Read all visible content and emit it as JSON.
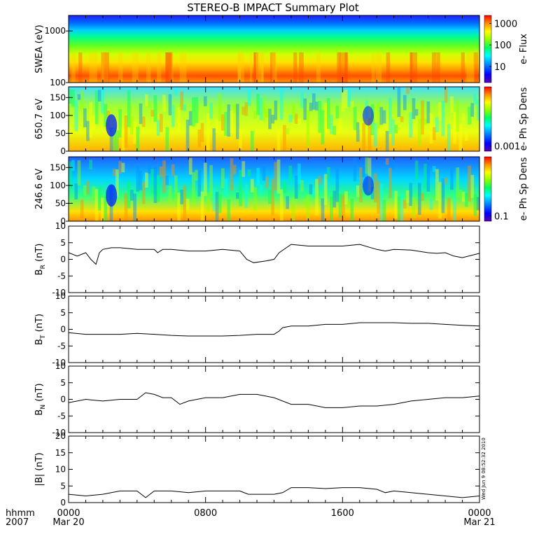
{
  "title": "STEREO-B IMPACT Summary Plot",
  "time_axis": {
    "left_labels": [
      "hhmm",
      "2007"
    ],
    "ticks": [
      {
        "hours": 0,
        "top": "0000",
        "bottom": "Mar 20"
      },
      {
        "hours": 8,
        "top": "0800",
        "bottom": ""
      },
      {
        "hours": 16,
        "top": "1600",
        "bottom": ""
      },
      {
        "hours": 24,
        "top": "0000",
        "bottom": "Mar 21"
      }
    ]
  },
  "timestamp": "Wed Jun  9 08:52:32 2010",
  "colors": {
    "spectrogram_scale": [
      "#5a00b0",
      "#0000ff",
      "#0090ff",
      "#00ffff",
      "#00ff60",
      "#90ff00",
      "#ffff00",
      "#ff9000",
      "#ff0000"
    ]
  },
  "chart_data": [
    {
      "type": "heatmap",
      "ylabel": "SWEA (eV)",
      "yscale": "log",
      "ylim": [
        100,
        2000
      ],
      "yticks": [
        "1000",
        "100"
      ],
      "colorbar": {
        "label": "e- Flux",
        "scale": "log",
        "ticks": [
          "1000",
          "100",
          "10"
        ]
      },
      "pattern": "energy-dominated: high flux at 100-200 eV (orange/red), decreasing to blue at ~2000 eV"
    },
    {
      "type": "heatmap",
      "ylabel": "650.7 eV",
      "ylim": [
        0,
        180
      ],
      "yticks": [
        "150",
        "100",
        "50",
        "0"
      ],
      "colorbar": {
        "label": "e- Ph Sp Dens",
        "scale": "log",
        "ticks": [
          "0.001"
        ]
      }
    },
    {
      "type": "heatmap",
      "ylabel": "246.6 eV",
      "ylim": [
        0,
        180
      ],
      "yticks": [
        "150",
        "100",
        "50",
        "0"
      ],
      "colorbar": {
        "label": "e- Ph Sp Dens",
        "scale": "log",
        "ticks": [
          "0.1"
        ]
      }
    },
    {
      "type": "line",
      "ylabel": {
        "main": "B",
        "sub": "R",
        "unit": " (nT)"
      },
      "ylim": [
        -10,
        10
      ],
      "yticks": [
        "10",
        "5",
        "0",
        "-5",
        "-10"
      ],
      "x": [
        0,
        0.5,
        1,
        1.3,
        1.6,
        1.8,
        2,
        2.5,
        3,
        4,
        5,
        5.2,
        5.5,
        6,
        7,
        8,
        9,
        10,
        10.4,
        10.8,
        11.5,
        12,
        12.3,
        13,
        14,
        15,
        16,
        17,
        18,
        18.5,
        19,
        20,
        21,
        21.5,
        22,
        22.5,
        23,
        24
      ],
      "y": [
        2,
        1,
        2,
        0,
        -1.5,
        2,
        3,
        3.5,
        3.5,
        3,
        3,
        2,
        3,
        3,
        2.5,
        2.5,
        3,
        2.5,
        0,
        -1,
        -0.5,
        0,
        2,
        4.5,
        4,
        4,
        4,
        4.5,
        3,
        2.5,
        3,
        2.8,
        2,
        1.8,
        2,
        1,
        0.5,
        1.8
      ]
    },
    {
      "type": "line",
      "ylabel": {
        "main": "B",
        "sub": "T",
        "unit": " (nT)"
      },
      "ylim": [
        -10,
        10
      ],
      "yticks": [
        "10",
        "5",
        "0",
        "-5",
        "-10"
      ],
      "x": [
        0,
        1,
        2,
        3,
        4,
        5,
        6,
        7,
        8,
        9,
        10,
        11,
        12,
        12.3,
        12.5,
        13,
        14,
        15,
        16,
        17,
        18,
        19,
        20,
        21,
        22,
        23,
        24
      ],
      "y": [
        -1,
        -1.5,
        -1.5,
        -1.5,
        -1.2,
        -1.5,
        -1.8,
        -2,
        -2,
        -2,
        -1.8,
        -1.5,
        -1.5,
        -0.5,
        0.5,
        1,
        1,
        1.5,
        1.5,
        2,
        2,
        2,
        1.8,
        1.8,
        1.5,
        1.2,
        1
      ]
    },
    {
      "type": "line",
      "ylabel": {
        "main": "B",
        "sub": "N",
        "unit": " (nT)"
      },
      "ylim": [
        -10,
        10
      ],
      "yticks": [
        "10",
        "5",
        "0",
        "-5",
        "-10"
      ],
      "x": [
        0,
        1,
        2,
        3,
        4,
        4.5,
        5,
        5.5,
        6,
        6.5,
        7,
        8,
        9,
        10,
        11,
        12,
        13,
        14,
        15,
        16,
        17,
        18,
        19,
        20,
        21,
        22,
        23,
        24
      ],
      "y": [
        -1,
        0,
        -0.5,
        0,
        0,
        2,
        1.5,
        0.5,
        0.5,
        -1.5,
        -0.5,
        0.5,
        0.5,
        1.5,
        1.5,
        0.5,
        -1.5,
        -1.5,
        -2.5,
        -2.5,
        -2,
        -2,
        -1.5,
        -0.5,
        0,
        0.5,
        0.5,
        1
      ]
    },
    {
      "type": "line",
      "ylabel": {
        "main": "|B| (nT)",
        "sub": "",
        "unit": ""
      },
      "ylim": [
        0,
        20
      ],
      "yticks": [
        "20",
        "15",
        "10",
        "5",
        "0"
      ],
      "x": [
        0,
        1,
        2,
        3,
        4,
        4.5,
        5,
        6,
        7,
        8,
        9,
        10,
        10.5,
        11,
        12,
        12.5,
        13,
        14,
        15,
        16,
        17,
        18,
        18.5,
        19,
        20,
        21,
        22,
        23,
        24
      ],
      "y": [
        2.5,
        2,
        2.5,
        3.5,
        3.5,
        1.5,
        3.5,
        3.5,
        3,
        3.5,
        3.5,
        3.5,
        2.5,
        2.5,
        2.5,
        3,
        4.5,
        4.5,
        4.2,
        4.5,
        4.5,
        4,
        3,
        3.5,
        3,
        2.5,
        2,
        1.5,
        2
      ]
    }
  ]
}
